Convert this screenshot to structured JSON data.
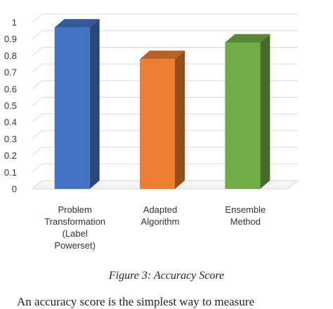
{
  "chart_data": {
    "type": "bar",
    "title": "",
    "categories": [
      [
        "Problem",
        "Transformation",
        "(Label",
        "Powerset)"
      ],
      [
        "Adapted",
        "Algorithm"
      ],
      [
        "Ensemble",
        "Method"
      ]
    ],
    "values": [
      0.97,
      0.78,
      0.88
    ],
    "colors": [
      "#4472c4",
      "#ed7d31",
      "#70ad47"
    ],
    "ylim": [
      0,
      1
    ],
    "yticks": [
      "0",
      "0.1",
      "0.2",
      "0.3",
      "0.4",
      "0.5",
      "0.6",
      "0.7",
      "0.8",
      "0.9",
      "1"
    ],
    "grid": true,
    "bar_style": "3d"
  },
  "caption": "Figure 3: Accuracy Score",
  "body_text": "An accuracy score is the simplest way to measure"
}
